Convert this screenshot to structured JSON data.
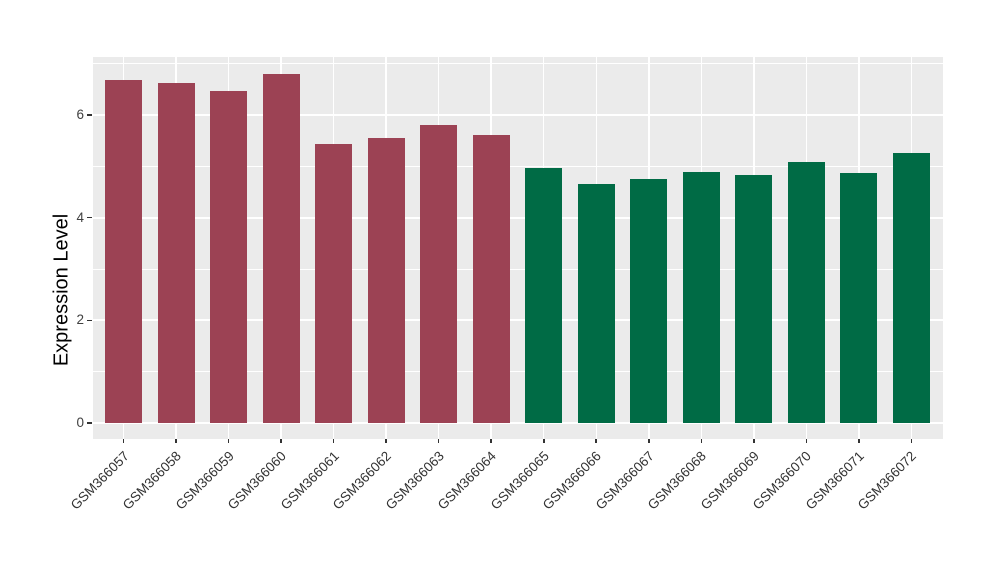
{
  "colors": {
    "bar_group1": "#9C4254",
    "bar_group2": "#006B45",
    "panel_background": "#EBEBEB",
    "gridline": "#FFFFFF",
    "axis_text": "#404040",
    "axis_title": "#000000",
    "tick_mark": "#333333",
    "figure_background": "#FFFFFF"
  },
  "chart_data": {
    "type": "bar",
    "title": "",
    "xlabel": "",
    "ylabel": "Expression Level",
    "categories": [
      "GSM366057",
      "GSM366058",
      "GSM366059",
      "GSM366060",
      "GSM366061",
      "GSM366062",
      "GSM366063",
      "GSM366064",
      "GSM366065",
      "GSM366066",
      "GSM366067",
      "GSM366068",
      "GSM366069",
      "GSM366070",
      "GSM366071",
      "GSM366072"
    ],
    "values": [
      6.68,
      6.63,
      6.47,
      6.8,
      5.44,
      5.55,
      5.8,
      5.62,
      4.97,
      4.66,
      4.75,
      4.88,
      4.84,
      5.09,
      4.87,
      5.26
    ],
    "bar_colors": [
      "#9C4254",
      "#9C4254",
      "#9C4254",
      "#9C4254",
      "#9C4254",
      "#9C4254",
      "#9C4254",
      "#9C4254",
      "#006B45",
      "#006B45",
      "#006B45",
      "#006B45",
      "#006B45",
      "#006B45",
      "#006B45",
      "#006B45"
    ],
    "y_ticks": [
      0,
      2,
      4,
      6
    ],
    "y_tick_labels": [
      "0",
      "2",
      "4",
      "6"
    ],
    "y_minor_ticks": [
      1,
      3,
      5,
      7
    ],
    "ylim": [
      0,
      7.13
    ],
    "x_tick_angle_deg": 45,
    "grid": "on",
    "legend_position": "none"
  }
}
